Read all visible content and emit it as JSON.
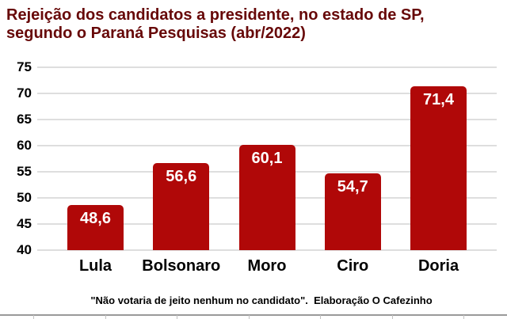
{
  "title_line1": "Rejeição dos candidatos a presidente, no estado de SP,",
  "title_line2": "segundo o Paraná Pesquisas (abr/2022)",
  "caption": "\"Não votaria de jeito nenhum no candidato\".  Elaboração O Cafezinho",
  "colors": {
    "bar": "#b00808",
    "title": "#670808",
    "gridline": "#dedede",
    "value_label": "#ffffff",
    "axis_text": "#000000"
  },
  "chart_data": {
    "type": "bar",
    "title": "Rejeição dos candidatos a presidente, no estado de SP, segundo o Paraná Pesquisas (abr/2022)",
    "categories": [
      "Lula",
      "Bolsonaro",
      "Moro",
      "Ciro",
      "Doria"
    ],
    "values": [
      48.6,
      56.6,
      60.1,
      54.7,
      71.4
    ],
    "value_labels": [
      "48,6",
      "56,6",
      "60,1",
      "54,7",
      "71,4"
    ],
    "xlabel": "",
    "ylabel": "",
    "ylim": [
      40,
      75
    ],
    "yticks": [
      40,
      45,
      50,
      55,
      60,
      65,
      70,
      75
    ],
    "grid": true,
    "legend": false,
    "caption": "\"Não votaria de jeito nenhum no candidato\".  Elaboração O Cafezinho"
  }
}
